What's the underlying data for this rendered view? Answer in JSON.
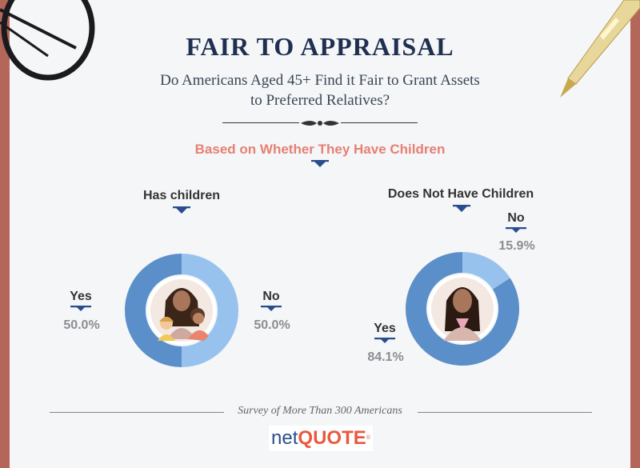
{
  "header": {
    "title": "FAIR TO APPRAISAL",
    "subtitle_line1": "Do Americans Aged 45+ Find it Fair to Grant Assets",
    "subtitle_line2": "to Preferred Relatives?",
    "section": "Based on Whether They Have Children"
  },
  "colors": {
    "yes": "#5b8fc9",
    "no": "#98c2ee",
    "accent": "#e77f74",
    "navy": "#1f2f4f"
  },
  "chart_data": [
    {
      "type": "pie",
      "title": "Has children",
      "labels": [
        "Yes",
        "No"
      ],
      "values": [
        50.0,
        50.0
      ],
      "value_labels": [
        "50.0%",
        "50.0%"
      ]
    },
    {
      "type": "pie",
      "title": "Does Not Have Children",
      "labels": [
        "Yes",
        "No"
      ],
      "values": [
        84.1,
        15.9
      ],
      "value_labels": [
        "84.1%",
        "15.9%"
      ]
    }
  ],
  "footer": {
    "source": "Survey of More Than 300 Americans",
    "logo_net": "net",
    "logo_quote": "QUOTE",
    "logo_reg": "®"
  }
}
